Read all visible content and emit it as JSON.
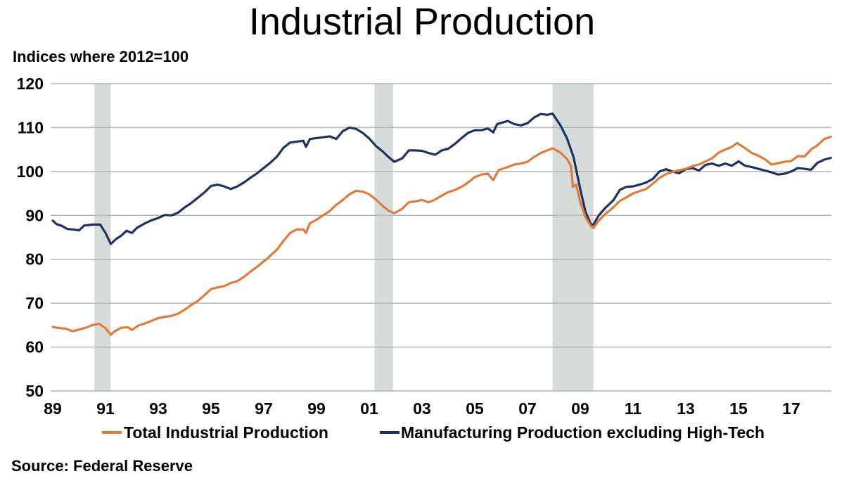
{
  "chart_data": {
    "type": "line",
    "title": "Industrial Production",
    "subtitle": "Indices where 2012=100",
    "source": "Source: Federal Reserve",
    "xlabel": "",
    "ylabel": "Indices where 2012=100",
    "ylim": [
      50,
      120
    ],
    "xlim": [
      1988.95,
      2018.55
    ],
    "yticks": [
      50,
      60,
      70,
      80,
      90,
      100,
      110,
      120
    ],
    "xticks": [
      {
        "year": 1989,
        "label": "89"
      },
      {
        "year": 1991,
        "label": "91"
      },
      {
        "year": 1993,
        "label": "93"
      },
      {
        "year": 1995,
        "label": "95"
      },
      {
        "year": 1997,
        "label": "97"
      },
      {
        "year": 1999,
        "label": "99"
      },
      {
        "year": 2001,
        "label": "01"
      },
      {
        "year": 2003,
        "label": "03"
      },
      {
        "year": 2005,
        "label": "05"
      },
      {
        "year": 2007,
        "label": "07"
      },
      {
        "year": 2009,
        "label": "09"
      },
      {
        "year": 2011,
        "label": "11"
      },
      {
        "year": 2013,
        "label": "13"
      },
      {
        "year": 2015,
        "label": "15"
      },
      {
        "year": 2017,
        "label": "17"
      }
    ],
    "grid": true,
    "legend_position": "bottom",
    "recessions": [
      {
        "start": 1990.58,
        "end": 1991.2
      },
      {
        "start": 2001.2,
        "end": 2001.9
      },
      {
        "start": 2007.95,
        "end": 2009.5
      }
    ],
    "colors": {
      "recession": "#d6dcdb",
      "grid": "#b3b3b3"
    },
    "series": [
      {
        "name": "Total Industrial Production",
        "color": "#e07b39",
        "points": [
          [
            1989.0,
            64.6
          ],
          [
            1989.25,
            64.3
          ],
          [
            1989.5,
            64.2
          ],
          [
            1989.75,
            63.6
          ],
          [
            1990.0,
            64.0
          ],
          [
            1990.25,
            64.4
          ],
          [
            1990.5,
            65.0
          ],
          [
            1990.75,
            65.3
          ],
          [
            1991.0,
            64.3
          ],
          [
            1991.2,
            62.8
          ],
          [
            1991.35,
            63.6
          ],
          [
            1991.6,
            64.4
          ],
          [
            1991.85,
            64.5
          ],
          [
            1992.0,
            63.9
          ],
          [
            1992.25,
            64.9
          ],
          [
            1992.5,
            65.4
          ],
          [
            1992.75,
            66.0
          ],
          [
            1993.0,
            66.6
          ],
          [
            1993.25,
            66.9
          ],
          [
            1993.5,
            67.1
          ],
          [
            1993.75,
            67.6
          ],
          [
            1994.0,
            68.5
          ],
          [
            1994.25,
            69.6
          ],
          [
            1994.5,
            70.5
          ],
          [
            1994.75,
            71.8
          ],
          [
            1995.0,
            73.2
          ],
          [
            1995.25,
            73.6
          ],
          [
            1995.5,
            73.9
          ],
          [
            1995.75,
            74.6
          ],
          [
            1996.0,
            75.0
          ],
          [
            1996.25,
            76.0
          ],
          [
            1996.5,
            77.2
          ],
          [
            1996.75,
            78.3
          ],
          [
            1997.0,
            79.5
          ],
          [
            1997.25,
            80.8
          ],
          [
            1997.5,
            82.2
          ],
          [
            1997.75,
            84.2
          ],
          [
            1998.0,
            86.0
          ],
          [
            1998.25,
            86.8
          ],
          [
            1998.5,
            86.8
          ],
          [
            1998.6,
            86.0
          ],
          [
            1998.75,
            88.2
          ],
          [
            1999.0,
            89.0
          ],
          [
            1999.25,
            90.0
          ],
          [
            1999.5,
            91.0
          ],
          [
            1999.75,
            92.4
          ],
          [
            2000.0,
            93.5
          ],
          [
            2000.25,
            94.8
          ],
          [
            2000.5,
            95.6
          ],
          [
            2000.75,
            95.4
          ],
          [
            2001.0,
            94.8
          ],
          [
            2001.25,
            93.6
          ],
          [
            2001.5,
            92.2
          ],
          [
            2001.75,
            91.0
          ],
          [
            2001.95,
            90.5
          ],
          [
            2002.25,
            91.5
          ],
          [
            2002.5,
            93.0
          ],
          [
            2002.75,
            93.2
          ],
          [
            2003.0,
            93.5
          ],
          [
            2003.25,
            93.0
          ],
          [
            2003.5,
            93.6
          ],
          [
            2003.75,
            94.5
          ],
          [
            2004.0,
            95.3
          ],
          [
            2004.25,
            95.8
          ],
          [
            2004.5,
            96.5
          ],
          [
            2004.75,
            97.5
          ],
          [
            2005.0,
            98.7
          ],
          [
            2005.25,
            99.3
          ],
          [
            2005.5,
            99.5
          ],
          [
            2005.7,
            98.0
          ],
          [
            2005.9,
            100.3
          ],
          [
            2006.25,
            101.0
          ],
          [
            2006.5,
            101.6
          ],
          [
            2006.75,
            101.8
          ],
          [
            2007.0,
            102.2
          ],
          [
            2007.25,
            103.3
          ],
          [
            2007.5,
            104.2
          ],
          [
            2007.75,
            104.8
          ],
          [
            2007.95,
            105.3
          ],
          [
            2008.25,
            104.3
          ],
          [
            2008.5,
            102.8
          ],
          [
            2008.65,
            101.2
          ],
          [
            2008.72,
            96.5
          ],
          [
            2008.85,
            97.0
          ],
          [
            2009.0,
            93.0
          ],
          [
            2009.2,
            89.6
          ],
          [
            2009.4,
            87.6
          ],
          [
            2009.5,
            87.1
          ],
          [
            2009.7,
            88.8
          ],
          [
            2009.95,
            90.3
          ],
          [
            2010.25,
            91.8
          ],
          [
            2010.5,
            93.3
          ],
          [
            2010.75,
            94.1
          ],
          [
            2011.0,
            95.0
          ],
          [
            2011.25,
            95.5
          ],
          [
            2011.5,
            96.0
          ],
          [
            2011.75,
            97.2
          ],
          [
            2012.0,
            98.5
          ],
          [
            2012.25,
            99.4
          ],
          [
            2012.5,
            99.9
          ],
          [
            2012.75,
            100.3
          ],
          [
            2013.0,
            100.6
          ],
          [
            2013.25,
            101.2
          ],
          [
            2013.5,
            101.6
          ],
          [
            2013.75,
            102.3
          ],
          [
            2014.0,
            103.0
          ],
          [
            2014.25,
            104.3
          ],
          [
            2014.5,
            105.0
          ],
          [
            2014.75,
            105.6
          ],
          [
            2014.95,
            106.5
          ],
          [
            2015.25,
            105.3
          ],
          [
            2015.5,
            104.2
          ],
          [
            2015.75,
            103.6
          ],
          [
            2016.0,
            102.8
          ],
          [
            2016.25,
            101.6
          ],
          [
            2016.5,
            101.9
          ],
          [
            2016.75,
            102.2
          ],
          [
            2017.0,
            102.4
          ],
          [
            2017.25,
            103.5
          ],
          [
            2017.5,
            103.4
          ],
          [
            2017.75,
            105.0
          ],
          [
            2018.0,
            106.0
          ],
          [
            2018.25,
            107.4
          ],
          [
            2018.5,
            107.9
          ]
        ]
      },
      {
        "name": "Manufacturing Production excluding High-Tech",
        "color": "#1f3162",
        "points": [
          [
            1989.0,
            88.8
          ],
          [
            1989.15,
            88.0
          ],
          [
            1989.35,
            87.6
          ],
          [
            1989.55,
            86.9
          ],
          [
            1989.75,
            86.8
          ],
          [
            1990.0,
            86.6
          ],
          [
            1990.2,
            87.7
          ],
          [
            1990.5,
            87.9
          ],
          [
            1990.8,
            87.9
          ],
          [
            1991.0,
            86.0
          ],
          [
            1991.2,
            83.5
          ],
          [
            1991.4,
            84.6
          ],
          [
            1991.6,
            85.4
          ],
          [
            1991.8,
            86.5
          ],
          [
            1992.0,
            86.0
          ],
          [
            1992.2,
            87.2
          ],
          [
            1992.5,
            88.2
          ],
          [
            1992.75,
            88.9
          ],
          [
            1993.0,
            89.4
          ],
          [
            1993.25,
            90.1
          ],
          [
            1993.5,
            90.0
          ],
          [
            1993.75,
            90.6
          ],
          [
            1994.0,
            91.8
          ],
          [
            1994.25,
            92.8
          ],
          [
            1994.5,
            94.0
          ],
          [
            1994.75,
            95.2
          ],
          [
            1995.0,
            96.7
          ],
          [
            1995.25,
            97.0
          ],
          [
            1995.5,
            96.6
          ],
          [
            1995.75,
            96.0
          ],
          [
            1996.0,
            96.6
          ],
          [
            1996.25,
            97.5
          ],
          [
            1996.5,
            98.6
          ],
          [
            1996.75,
            99.6
          ],
          [
            1997.0,
            100.8
          ],
          [
            1997.25,
            102.0
          ],
          [
            1997.5,
            103.4
          ],
          [
            1997.75,
            105.4
          ],
          [
            1998.0,
            106.6
          ],
          [
            1998.25,
            106.8
          ],
          [
            1998.5,
            107.0
          ],
          [
            1998.6,
            105.6
          ],
          [
            1998.75,
            107.4
          ],
          [
            1999.0,
            107.6
          ],
          [
            1999.25,
            107.8
          ],
          [
            1999.5,
            108.0
          ],
          [
            1999.75,
            107.4
          ],
          [
            2000.0,
            109.2
          ],
          [
            2000.25,
            110.0
          ],
          [
            2000.5,
            109.7
          ],
          [
            2000.75,
            108.8
          ],
          [
            2001.0,
            107.5
          ],
          [
            2001.25,
            105.8
          ],
          [
            2001.5,
            104.6
          ],
          [
            2001.75,
            103.2
          ],
          [
            2001.95,
            102.2
          ],
          [
            2002.25,
            103.0
          ],
          [
            2002.5,
            104.8
          ],
          [
            2002.75,
            104.8
          ],
          [
            2003.0,
            104.7
          ],
          [
            2003.25,
            104.2
          ],
          [
            2003.5,
            103.8
          ],
          [
            2003.75,
            104.8
          ],
          [
            2004.0,
            105.2
          ],
          [
            2004.25,
            106.3
          ],
          [
            2004.5,
            107.6
          ],
          [
            2004.75,
            108.8
          ],
          [
            2005.0,
            109.4
          ],
          [
            2005.25,
            109.4
          ],
          [
            2005.5,
            109.8
          ],
          [
            2005.7,
            108.9
          ],
          [
            2005.85,
            110.8
          ],
          [
            2006.25,
            111.5
          ],
          [
            2006.5,
            110.8
          ],
          [
            2006.75,
            110.5
          ],
          [
            2007.0,
            111.0
          ],
          [
            2007.25,
            112.3
          ],
          [
            2007.5,
            113.1
          ],
          [
            2007.75,
            112.9
          ],
          [
            2007.95,
            113.2
          ],
          [
            2008.25,
            110.5
          ],
          [
            2008.5,
            107.5
          ],
          [
            2008.75,
            103.2
          ],
          [
            2009.0,
            96.0
          ],
          [
            2009.2,
            90.8
          ],
          [
            2009.4,
            88.0
          ],
          [
            2009.5,
            87.9
          ],
          [
            2009.7,
            90.0
          ],
          [
            2009.95,
            91.7
          ],
          [
            2010.25,
            93.4
          ],
          [
            2010.5,
            95.8
          ],
          [
            2010.75,
            96.5
          ],
          [
            2011.0,
            96.6
          ],
          [
            2011.25,
            97.0
          ],
          [
            2011.5,
            97.5
          ],
          [
            2011.75,
            98.3
          ],
          [
            2012.0,
            100.0
          ],
          [
            2012.25,
            100.5
          ],
          [
            2012.5,
            100.0
          ],
          [
            2012.75,
            99.6
          ],
          [
            2013.0,
            100.5
          ],
          [
            2013.25,
            100.8
          ],
          [
            2013.5,
            100.2
          ],
          [
            2013.75,
            101.5
          ],
          [
            2014.0,
            101.8
          ],
          [
            2014.25,
            101.3
          ],
          [
            2014.5,
            101.8
          ],
          [
            2014.75,
            101.3
          ],
          [
            2015.0,
            102.3
          ],
          [
            2015.25,
            101.3
          ],
          [
            2015.5,
            101.0
          ],
          [
            2015.75,
            100.6
          ],
          [
            2016.0,
            100.2
          ],
          [
            2016.25,
            99.8
          ],
          [
            2016.5,
            99.3
          ],
          [
            2016.75,
            99.5
          ],
          [
            2017.0,
            100.0
          ],
          [
            2017.25,
            100.8
          ],
          [
            2017.5,
            100.6
          ],
          [
            2017.75,
            100.4
          ],
          [
            2018.0,
            102.0
          ],
          [
            2018.25,
            102.7
          ],
          [
            2018.5,
            103.1
          ]
        ]
      }
    ]
  }
}
